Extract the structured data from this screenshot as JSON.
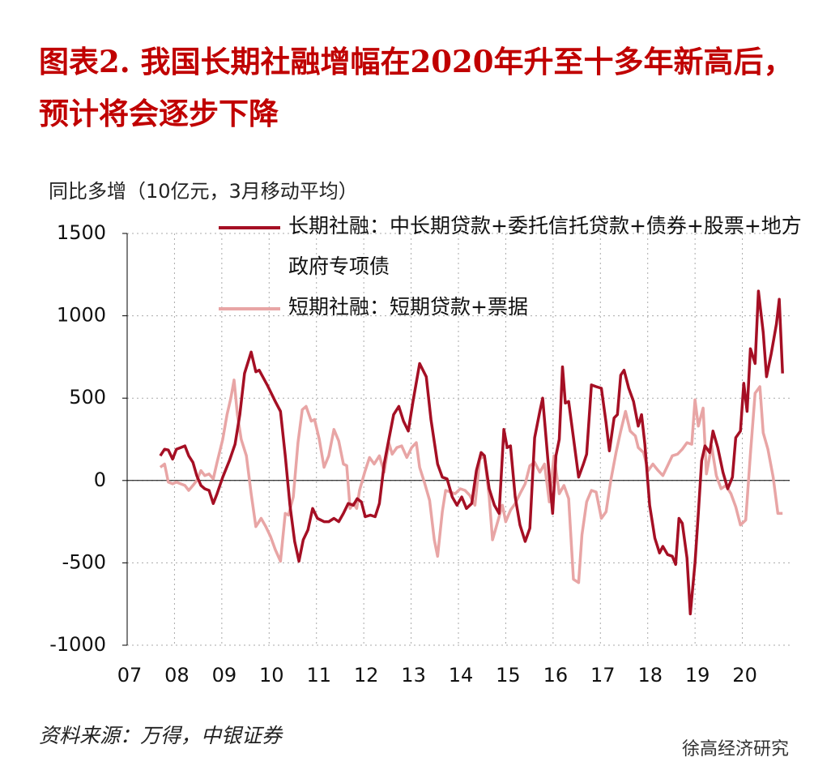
{
  "chart_data": {
    "type": "line",
    "title": "图表2.  我国长期社融增幅在2020年升至十多年新高后，预计将会逐步下降",
    "y_label": "同比多增（10亿元，3月移动平均）",
    "source": "资料来源：万得，中银证券",
    "watermark": "徐高经济研究",
    "xlim": [
      2007,
      2021
    ],
    "xticks": [
      {
        "value": 2007,
        "label": "07"
      },
      {
        "value": 2008,
        "label": "08"
      },
      {
        "value": 2009,
        "label": "09"
      },
      {
        "value": 2010,
        "label": "10"
      },
      {
        "value": 2011,
        "label": "11"
      },
      {
        "value": 2012,
        "label": "12"
      },
      {
        "value": 2013,
        "label": "13"
      },
      {
        "value": 2014,
        "label": "14"
      },
      {
        "value": 2015,
        "label": "15"
      },
      {
        "value": 2016,
        "label": "16"
      },
      {
        "value": 2017,
        "label": "17"
      },
      {
        "value": 2018,
        "label": "18"
      },
      {
        "value": 2019,
        "label": "19"
      },
      {
        "value": 2020,
        "label": "20"
      }
    ],
    "ylim": [
      -1000,
      1500
    ],
    "yticks": [
      -1000,
      -500,
      0,
      500,
      1000,
      1500
    ],
    "grid": true,
    "series": [
      {
        "name": "长期社融：中长期贷款+委托信托贷款+债券+股票+地方政府专项债",
        "color": "#a50f24",
        "x": [
          2007.7,
          2007.79,
          2007.87,
          2007.96,
          2008.04,
          2008.13,
          2008.22,
          2008.3,
          2008.39,
          2008.47,
          2008.56,
          2008.64,
          2008.73,
          2008.82,
          2008.9,
          2009.02,
          2009.16,
          2009.28,
          2009.38,
          2009.48,
          2009.62,
          2009.72,
          2009.79,
          2009.96,
          2010.13,
          2010.24,
          2010.34,
          2010.44,
          2010.54,
          2010.63,
          2010.72,
          2010.82,
          2010.92,
          2011.02,
          2011.16,
          2011.26,
          2011.37,
          2011.47,
          2011.57,
          2011.67,
          2011.78,
          2011.86,
          2011.95,
          2012.03,
          2012.14,
          2012.24,
          2012.33,
          2012.43,
          2012.53,
          2012.63,
          2012.74,
          2012.84,
          2012.94,
          2013.04,
          2013.18,
          2013.32,
          2013.42,
          2013.56,
          2013.66,
          2013.76,
          2013.87,
          2013.97,
          2014.07,
          2014.17,
          2014.28,
          2014.38,
          2014.48,
          2014.55,
          2014.65,
          2014.76,
          2014.86,
          2014.96,
          2015.03,
          2015.1,
          2015.2,
          2015.3,
          2015.41,
          2015.51,
          2015.61,
          2015.72,
          2015.78,
          2015.89,
          2015.99,
          2016.06,
          2016.13,
          2016.2,
          2016.26,
          2016.33,
          2016.43,
          2016.54,
          2016.64,
          2016.71,
          2016.81,
          2016.91,
          2017.02,
          2017.12,
          2017.19,
          2017.29,
          2017.36,
          2017.43,
          2017.5,
          2017.6,
          2017.7,
          2017.8,
          2017.87,
          2017.94,
          2018.04,
          2018.15,
          2018.25,
          2018.32,
          2018.42,
          2018.52,
          2018.59,
          2018.66,
          2018.73,
          2018.83,
          2018.9,
          2019.0,
          2019.07,
          2019.14,
          2019.21,
          2019.31,
          2019.38,
          2019.48,
          2019.59,
          2019.69,
          2019.79,
          2019.86,
          2019.96,
          2020.03,
          2020.1,
          2020.17,
          2020.27,
          2020.34,
          2020.44,
          2020.51,
          2020.61,
          2020.72,
          2020.78,
          2020.85
        ],
        "values": [
          150,
          190,
          185,
          130,
          190,
          200,
          210,
          150,
          110,
          30,
          -30,
          -50,
          -60,
          -140,
          -80,
          20,
          120,
          220,
          400,
          650,
          780,
          660,
          670,
          580,
          480,
          420,
          150,
          -150,
          -370,
          -490,
          -360,
          -300,
          -170,
          -230,
          -250,
          -250,
          -230,
          -250,
          -200,
          -140,
          -150,
          -110,
          -130,
          -220,
          -210,
          -220,
          -140,
          100,
          250,
          400,
          450,
          360,
          300,
          480,
          710,
          630,
          370,
          100,
          20,
          10,
          -100,
          -150,
          -100,
          -170,
          -140,
          60,
          170,
          150,
          -50,
          -150,
          -200,
          310,
          200,
          210,
          -100,
          -270,
          -370,
          -290,
          260,
          420,
          500,
          130,
          -200,
          150,
          250,
          690,
          470,
          480,
          260,
          20,
          100,
          160,
          580,
          570,
          560,
          350,
          180,
          380,
          400,
          640,
          670,
          560,
          480,
          330,
          400,
          220,
          -150,
          -350,
          -440,
          -400,
          -450,
          -460,
          -510,
          -230,
          -260,
          -470,
          -810,
          -500,
          -200,
          120,
          210,
          170,
          300,
          200,
          50,
          -50,
          20,
          260,
          300,
          590,
          420,
          800,
          710,
          1150,
          900,
          630,
          770,
          950,
          1100,
          650
        ]
      },
      {
        "name": "短期社融：短期贷款+票据",
        "color": "#e8a5a5",
        "x": [
          2007.7,
          2007.79,
          2007.87,
          2007.96,
          2008.04,
          2008.13,
          2008.22,
          2008.3,
          2008.39,
          2008.47,
          2008.56,
          2008.64,
          2008.73,
          2008.82,
          2008.9,
          2009.02,
          2009.11,
          2009.19,
          2009.26,
          2009.33,
          2009.41,
          2009.52,
          2009.62,
          2009.72,
          2009.83,
          2009.93,
          2010.03,
          2010.13,
          2010.24,
          2010.34,
          2010.41,
          2010.51,
          2010.61,
          2010.7,
          2010.78,
          2010.89,
          2010.96,
          2011.06,
          2011.16,
          2011.26,
          2011.37,
          2011.47,
          2011.57,
          2011.64,
          2011.71,
          2011.78,
          2011.85,
          2011.91,
          2012.02,
          2012.12,
          2012.22,
          2012.33,
          2012.43,
          2012.53,
          2012.6,
          2012.7,
          2012.8,
          2012.91,
          2013.01,
          2013.11,
          2013.18,
          2013.28,
          2013.39,
          2013.49,
          2013.56,
          2013.66,
          2013.73,
          2013.83,
          2013.93,
          2014.04,
          2014.14,
          2014.24,
          2014.35,
          2014.45,
          2014.55,
          2014.65,
          2014.72,
          2014.83,
          2014.93,
          2015.0,
          2015.1,
          2015.2,
          2015.3,
          2015.41,
          2015.51,
          2015.61,
          2015.72,
          2015.82,
          2015.92,
          2016.02,
          2016.13,
          2016.23,
          2016.33,
          2016.43,
          2016.54,
          2016.61,
          2016.71,
          2016.81,
          2016.91,
          2017.02,
          2017.12,
          2017.22,
          2017.33,
          2017.43,
          2017.53,
          2017.63,
          2017.74,
          2017.8,
          2017.91,
          2018.01,
          2018.11,
          2018.22,
          2018.32,
          2018.42,
          2018.52,
          2018.63,
          2018.73,
          2018.83,
          2018.93,
          2019.0,
          2019.07,
          2019.17,
          2019.24,
          2019.35,
          2019.45,
          2019.55,
          2019.65,
          2019.76,
          2019.86,
          2019.96,
          2020.07,
          2020.17,
          2020.27,
          2020.37,
          2020.44,
          2020.54,
          2020.65,
          2020.75,
          2020.85
        ],
        "values": [
          80,
          100,
          -10,
          -20,
          -10,
          -20,
          -30,
          -60,
          -30,
          0,
          60,
          30,
          40,
          10,
          110,
          250,
          400,
          500,
          610,
          400,
          250,
          150,
          -80,
          -280,
          -230,
          -280,
          -340,
          -420,
          -490,
          -200,
          -210,
          -100,
          230,
          430,
          450,
          360,
          370,
          250,
          80,
          150,
          310,
          240,
          100,
          90,
          -170,
          -140,
          -170,
          -60,
          50,
          140,
          100,
          150,
          50,
          230,
          160,
          200,
          210,
          140,
          200,
          230,
          80,
          -10,
          -120,
          -360,
          -460,
          -190,
          -60,
          -70,
          -80,
          -50,
          -60,
          -90,
          -150,
          130,
          150,
          -100,
          -360,
          -250,
          -150,
          -250,
          -180,
          -140,
          -80,
          -20,
          90,
          110,
          50,
          100,
          -130,
          150,
          -80,
          -30,
          -110,
          -600,
          -620,
          -330,
          -130,
          -60,
          -70,
          -230,
          -190,
          0,
          170,
          300,
          420,
          300,
          270,
          200,
          170,
          60,
          100,
          60,
          30,
          90,
          150,
          160,
          190,
          230,
          220,
          490,
          330,
          440,
          40,
          210,
          30,
          -50,
          -30,
          -80,
          -160,
          -270,
          -240,
          160,
          530,
          570,
          290,
          190,
          20,
          -200,
          -200
        ]
      }
    ]
  }
}
